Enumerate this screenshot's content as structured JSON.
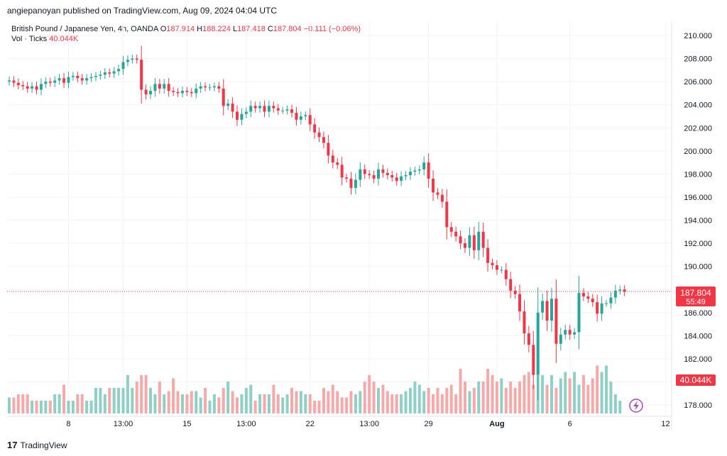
{
  "publisher_line": "angiepanoyan published on TradingView.com, Aug 09, 2024 04:04 UTC",
  "legend": {
    "symbol": "British Pound / Japanese Yen, 4h, OANDA",
    "o_label": "O",
    "o_value": "187.914",
    "h_label": "H",
    "h_value": "188.224",
    "l_label": "L",
    "l_value": "187.418",
    "c_label": "C",
    "c_value": "187.804",
    "change": "−0.111 (−0.06%)",
    "vol_label": "Vol · Ticks",
    "vol_value": "40.044K"
  },
  "price_tag": {
    "price": "187.804",
    "countdown": "55:49"
  },
  "volume_tag": "40.044K",
  "footer": {
    "logo": "TradingView",
    "mark": "17"
  },
  "colors": {
    "up": "#26a69a",
    "down": "#f23645",
    "up_vol": "#8fd0c6",
    "down_vol": "#f7a9a9",
    "grid": "#f0f3fa"
  },
  "chart_data": {
    "type": "candlestick",
    "title": "British Pound / Japanese Yen, 4h, OANDA",
    "ylim": [
      177,
      211.5
    ],
    "y_ticks": [
      "210.000",
      "208.000",
      "206.000",
      "204.000",
      "202.000",
      "200.000",
      "198.000",
      "196.000",
      "194.000",
      "192.000",
      "190.000",
      "188.000",
      "186.000",
      "184.000",
      "182.000",
      "180.000",
      "178.000"
    ],
    "x_ticks": [
      {
        "label": "8",
        "i": 13
      },
      {
        "label": "13:00",
        "i": 25
      },
      {
        "label": "15",
        "i": 39
      },
      {
        "label": "13:00",
        "i": 52
      },
      {
        "label": "22",
        "i": 66
      },
      {
        "label": "13:00",
        "i": 79
      },
      {
        "label": "29",
        "i": 92
      },
      {
        "label": "Aug",
        "i": 107
      },
      {
        "label": "6",
        "i": 123
      },
      {
        "label": "12",
        "i": 144
      }
    ],
    "last_price": 187.804,
    "closes": [
      206.1,
      205.9,
      205.7,
      205.6,
      205.4,
      205.6,
      205.3,
      205.8,
      206.0,
      205.9,
      206.1,
      206.3,
      205.9,
      206.4,
      206.5,
      206.3,
      206.1,
      206.3,
      206.4,
      206.5,
      206.6,
      206.8,
      206.7,
      206.9,
      207.1,
      207.7,
      207.9,
      208.0,
      207.9,
      205.3,
      204.9,
      205.2,
      205.8,
      205.4,
      205.8,
      205.2,
      205.1,
      205.0,
      205.2,
      205.1,
      205.0,
      205.4,
      205.6,
      205.5,
      205.5,
      205.6,
      205.4,
      203.9,
      204.1,
      203.4,
      202.7,
      203.2,
      203.4,
      203.9,
      203.7,
      203.9,
      203.4,
      203.9,
      203.7,
      203.5,
      203.5,
      203.6,
      203.3,
      202.7,
      203.0,
      203.1,
      202.3,
      201.6,
      201.2,
      200.7,
      199.6,
      199.0,
      198.8,
      197.7,
      197.6,
      196.8,
      197.5,
      198.4,
      198.0,
      197.9,
      197.6,
      198.4,
      198.1,
      197.9,
      197.7,
      197.4,
      197.8,
      197.9,
      198.2,
      198.3,
      198.4,
      199.0,
      197.6,
      196.4,
      196.2,
      195.6,
      193.4,
      193.0,
      192.6,
      192.0,
      191.6,
      192.7,
      191.4,
      193.0,
      191.6,
      190.3,
      190.1,
      189.7,
      189.7,
      188.9,
      187.9,
      187.6,
      186.1,
      184.2,
      183.2,
      180.6,
      186.0,
      187.0,
      185.3,
      187.2,
      183.3,
      184.1,
      184.5,
      184.1,
      184.3,
      187.7,
      187.4,
      187.2,
      186.9,
      185.9,
      186.8,
      186.8,
      187.3,
      187.9,
      188.0,
      187.8
    ],
    "volumes": [
      0.25,
      0.25,
      0.3,
      0.3,
      0.3,
      0.2,
      0.2,
      0.2,
      0.2,
      0.2,
      0.3,
      0.3,
      0.45,
      0.2,
      0.2,
      0.3,
      0.3,
      0.2,
      0.2,
      0.4,
      0.4,
      0.3,
      0.4,
      0.4,
      0.4,
      0.4,
      0.6,
      0.4,
      0.5,
      0.6,
      0.6,
      0.4,
      0.3,
      0.5,
      0.3,
      0.35,
      0.55,
      0.35,
      0.3,
      0.3,
      0.35,
      0.35,
      0.25,
      0.4,
      0.2,
      0.3,
      0.25,
      0.4,
      0.5,
      0.35,
      0.25,
      0.3,
      0.4,
      0.45,
      0.2,
      0.3,
      0.3,
      0.3,
      0.45,
      0.3,
      0.25,
      0.3,
      0.4,
      0.35,
      0.35,
      0.3,
      0.3,
      0.2,
      0.2,
      0.4,
      0.35,
      0.45,
      0.35,
      0.25,
      0.25,
      0.35,
      0.3,
      0.35,
      0.5,
      0.6,
      0.5,
      0.4,
      0.45,
      0.35,
      0.3,
      0.3,
      0.3,
      0.35,
      0.4,
      0.5,
      0.45,
      0.35,
      0.4,
      0.3,
      0.4,
      0.3,
      0.4,
      0.45,
      0.3,
      0.7,
      0.5,
      0.35,
      0.4,
      0.5,
      0.5,
      0.7,
      0.6,
      0.5,
      0.55,
      0.4,
      0.5,
      0.4,
      0.5,
      0.6,
      0.65,
      0.45,
      0.6,
      0.6,
      0.45,
      0.6,
      0.4,
      0.55,
      0.65,
      0.55,
      0.65,
      0.45,
      0.6,
      0.45,
      0.55,
      0.75,
      0.65,
      0.75,
      0.5,
      0.3,
      0.2
    ]
  }
}
